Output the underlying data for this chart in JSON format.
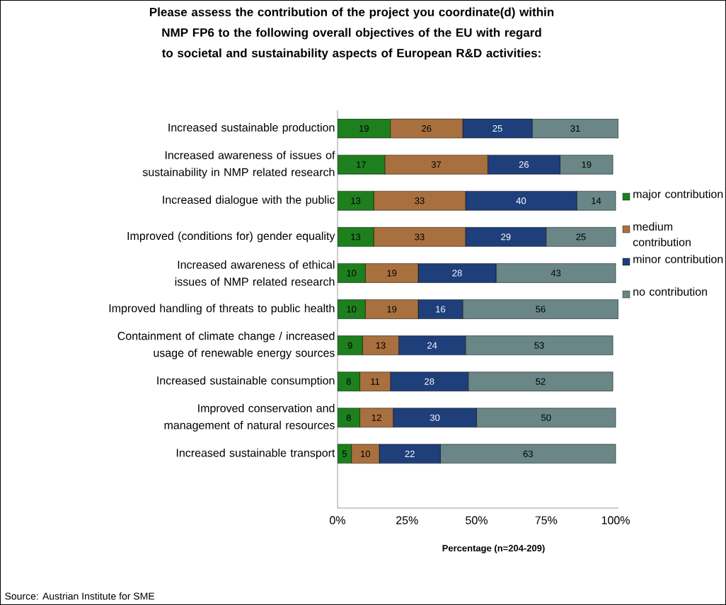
{
  "chart_data": {
    "type": "bar",
    "orientation": "horizontal",
    "stacked": true,
    "title": "Please assess the contribution of the project you coordinate(d) within NMP FP6 to the following overall objectives of the EU with regard to societal and sustainability aspects of European R&D activities:",
    "xlabel": "Percentage (n=204-209)",
    "categories": [
      "Increased sustainable production",
      "Increased awareness of issues of sustainability in NMP related research",
      "Increased dialogue with the public",
      "Improved (conditions for) gender equality",
      "Increased awareness of ethical issues of NMP related research",
      "Improved handling of threats to public health",
      "Containment of climate change / increased usage of renewable energy sources",
      "Increased sustainable consumption",
      "Improved conservation and management of natural resources",
      "Increased sustainable transport"
    ],
    "series": [
      {
        "name": "major contribution",
        "color": "#1e7f1e",
        "values": [
          19,
          17,
          13,
          13,
          10,
          10,
          9,
          8,
          8,
          5
        ],
        "value_labels": [
          "19",
          "17",
          "13",
          "13",
          "10",
          "10",
          "9",
          "8",
          "8",
          "5"
        ]
      },
      {
        "name": "medium contribution",
        "color": "#a8703e",
        "values": [
          26,
          37,
          33,
          33,
          19,
          19,
          13,
          11,
          12,
          10
        ],
        "value_labels": [
          "26",
          "37",
          "33",
          "33",
          "19",
          "19",
          "13",
          "11",
          "12",
          "10"
        ]
      },
      {
        "name": "minor contribution",
        "color": "#1f3f7a",
        "values": [
          25,
          26,
          40,
          29,
          28,
          16,
          24,
          28,
          30,
          22
        ],
        "value_labels": [
          "25",
          "26",
          "40",
          "29",
          "28",
          "16",
          "24",
          "28",
          "30",
          "22"
        ]
      },
      {
        "name": "no contribution",
        "color": "#6a8686",
        "values": [
          31,
          19,
          14,
          25,
          43,
          56,
          53,
          52,
          50,
          63
        ],
        "value_labels": [
          "31",
          "19",
          "14",
          "25",
          "43",
          "56",
          "53",
          "52",
          "50",
          "63"
        ]
      }
    ],
    "xlim": [
      0,
      101
    ],
    "xticks": [
      {
        "value": 0,
        "label": "0%"
      },
      {
        "value": 25,
        "label": "25%"
      },
      {
        "value": 50,
        "label": "50%"
      },
      {
        "value": 75,
        "label": "75%"
      },
      {
        "value": 100,
        "label": "100%"
      }
    ],
    "legend": "right",
    "grid": false,
    "annotations": [
      "Source: Austrian Institute for SME"
    ]
  }
}
